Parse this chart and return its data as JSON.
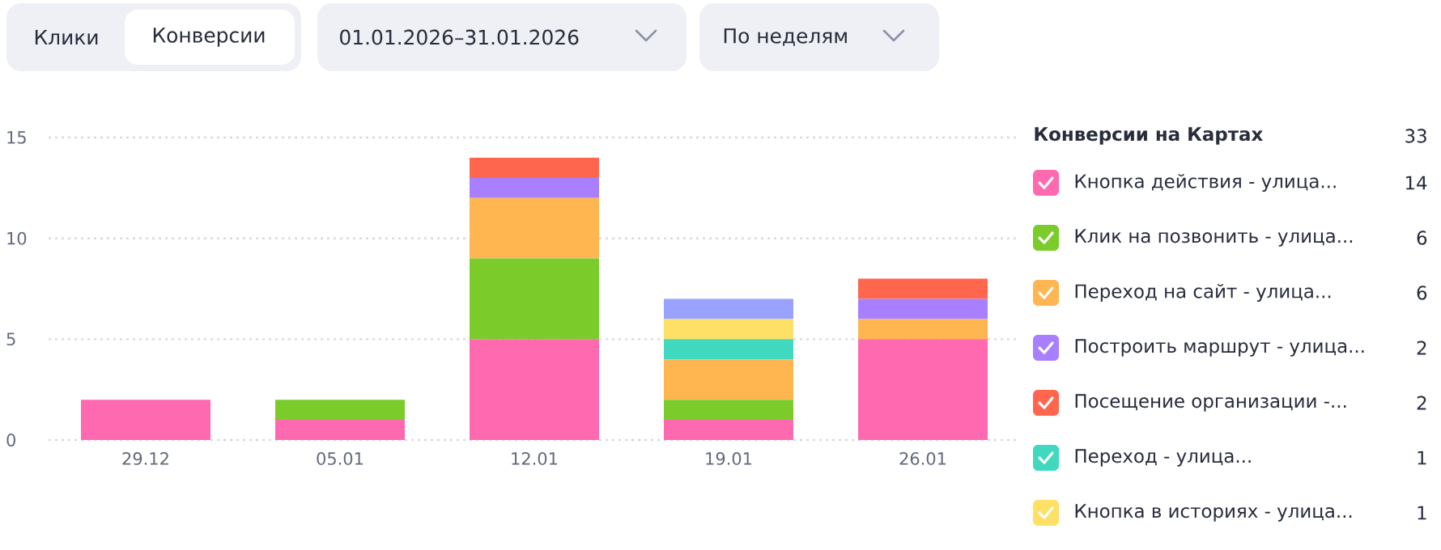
{
  "chart_data": {
    "type": "bar",
    "stacked": true,
    "grid": "y",
    "legend": "right",
    "legend_title": "Конверсии на Картах",
    "categories": [
      "29.12",
      "05.01",
      "12.01",
      "19.01",
      "26.01"
    ],
    "ylim": [
      0,
      15
    ],
    "yticks": [
      0,
      5,
      10,
      15
    ],
    "series": [
      {
        "name": "Кнопка действия - улица...",
        "color": "#ff69b0",
        "values": [
          2,
          1,
          5,
          1,
          5
        ]
      },
      {
        "name": "Клик на позвонить - улица...",
        "color": "#7bcc2b",
        "values": [
          0,
          1,
          4,
          1,
          0
        ]
      },
      {
        "name": "Переход на сайт - улица...",
        "color": "#ffb550",
        "values": [
          0,
          0,
          3,
          2,
          1
        ]
      },
      {
        "name": "Построить маршрут - улица...",
        "color": "#a880ff",
        "values": [
          0,
          0,
          1,
          0,
          1
        ]
      },
      {
        "name": "Посещение организации -...",
        "color": "#ff664d",
        "values": [
          0,
          0,
          1,
          0,
          1
        ]
      },
      {
        "name": "Переход - улица...",
        "color": "#40d9c0",
        "values": [
          0,
          0,
          0,
          1,
          0
        ]
      },
      {
        "name": "Кнопка в историях - улица...",
        "color": "#ffe066",
        "values": [
          0,
          0,
          0,
          1,
          0
        ]
      },
      {
        "color": "#99a3ff",
        "values": [
          0,
          0,
          0,
          1,
          0
        ]
      }
    ],
    "annotations": [
      "Клики",
      "Конверсии",
      "01.01.2026–31.01.2026",
      "По неделям",
      "33",
      "14",
      "6",
      "6",
      "2",
      "2",
      "1",
      "1"
    ]
  }
}
